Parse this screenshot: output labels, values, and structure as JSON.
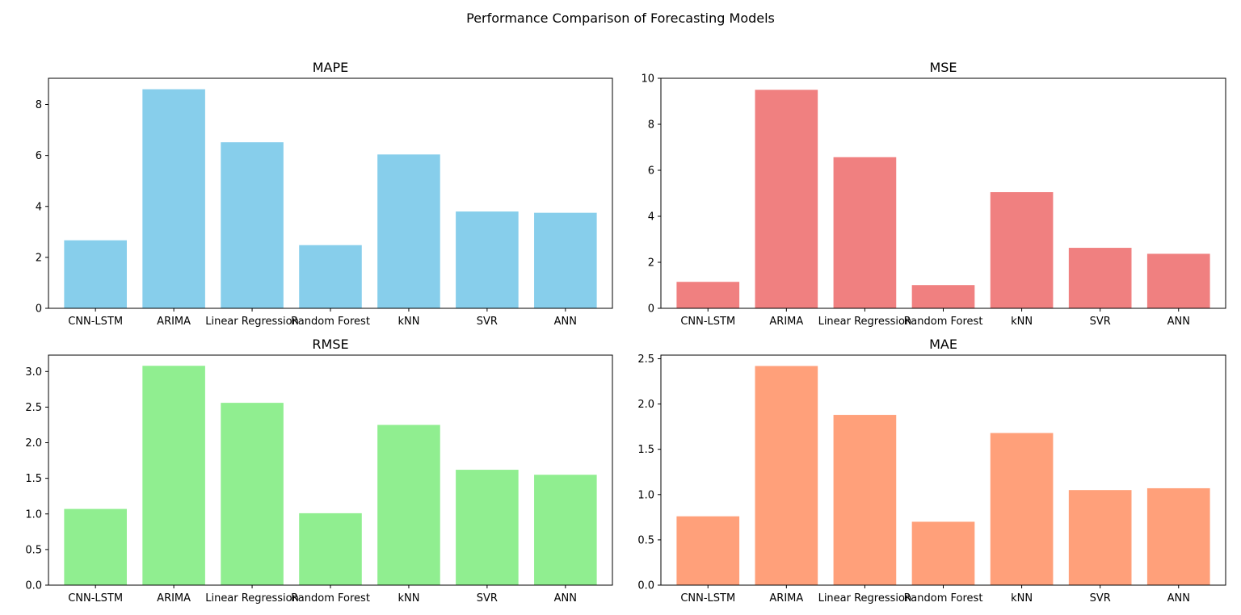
{
  "suptitle": "Performance Comparison of Forecasting Models",
  "chart_data": [
    {
      "type": "bar",
      "title": "MAPE",
      "categories": [
        "CNN-LSTM",
        "ARIMA",
        "Linear Regression",
        "Random Forest",
        "kNN",
        "SVR",
        "ANN"
      ],
      "values": [
        2.67,
        8.6,
        6.52,
        2.48,
        6.04,
        3.8,
        3.75
      ],
      "color": "#87CEEB",
      "ylim": [
        0,
        9.03
      ],
      "yticks": [
        0,
        2,
        4,
        6,
        8
      ],
      "ytick_labels": [
        "0",
        "2",
        "4",
        "6",
        "8"
      ],
      "grid": false
    },
    {
      "type": "bar",
      "title": "MSE",
      "categories": [
        "CNN-LSTM",
        "ARIMA",
        "Linear Regression",
        "Random Forest",
        "kNN",
        "SVR",
        "ANN"
      ],
      "values": [
        1.15,
        9.5,
        6.57,
        1.01,
        5.05,
        2.63,
        2.37
      ],
      "color": "#F08080",
      "ylim": [
        0,
        10
      ],
      "yticks": [
        0,
        2,
        4,
        6,
        8,
        10
      ],
      "ytick_labels": [
        "0",
        "2",
        "4",
        "6",
        "8",
        "10"
      ],
      "grid": false
    },
    {
      "type": "bar",
      "title": "RMSE",
      "categories": [
        "CNN-LSTM",
        "ARIMA",
        "Linear Regression",
        "Random Forest",
        "kNN",
        "SVR",
        "ANN"
      ],
      "values": [
        1.07,
        3.08,
        2.56,
        1.01,
        2.25,
        1.62,
        1.55
      ],
      "color": "#90EE90",
      "ylim": [
        0,
        3.23
      ],
      "yticks": [
        0,
        0.5,
        1.0,
        1.5,
        2.0,
        2.5,
        3.0
      ],
      "ytick_labels": [
        "0.0",
        "0.5",
        "1.0",
        "1.5",
        "2.0",
        "2.5",
        "3.0"
      ],
      "grid": false
    },
    {
      "type": "bar",
      "title": "MAE",
      "categories": [
        "CNN-LSTM",
        "ARIMA",
        "Linear Regression",
        "Random Forest",
        "kNN",
        "SVR",
        "ANN"
      ],
      "values": [
        0.76,
        2.42,
        1.88,
        0.7,
        1.68,
        1.05,
        1.07
      ],
      "color": "#FFA07A",
      "ylim": [
        0,
        2.54
      ],
      "yticks": [
        0,
        0.5,
        1.0,
        1.5,
        2.0,
        2.5
      ],
      "ytick_labels": [
        "0.0",
        "0.5",
        "1.0",
        "1.5",
        "2.0",
        "2.5"
      ],
      "grid": false
    }
  ]
}
